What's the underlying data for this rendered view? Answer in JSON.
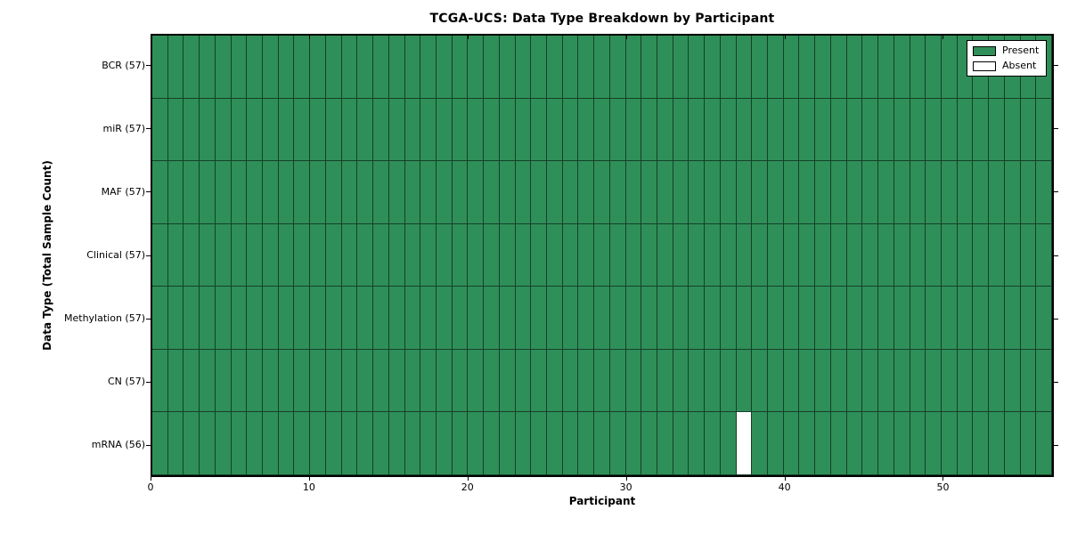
{
  "title": "TCGA-UCS: Data Type Breakdown by Participant",
  "colors": {
    "present": "#2f8f58",
    "absent": "#ffffff",
    "cell_edge": "#15402a",
    "spine": "#000000",
    "background": "#ffffff"
  },
  "chart_data": {
    "type": "heatmap",
    "title": "TCGA-UCS: Data Type Breakdown by Participant",
    "xlabel": "Participant",
    "ylabel": "Data Type (Total Sample Count)",
    "n_participants": 57,
    "x_range": [
      0,
      57
    ],
    "x_ticks": [
      0,
      10,
      20,
      30,
      40,
      50
    ],
    "rows": [
      {
        "label": "BCR (57)",
        "data_type": "BCR",
        "present_count": 57,
        "absent_participants": []
      },
      {
        "label": "miR (57)",
        "data_type": "miR",
        "present_count": 57,
        "absent_participants": []
      },
      {
        "label": "MAF (57)",
        "data_type": "MAF",
        "present_count": 57,
        "absent_participants": []
      },
      {
        "label": "Clinical (57)",
        "data_type": "Clinical",
        "present_count": 57,
        "absent_participants": []
      },
      {
        "label": "Methylation (57)",
        "data_type": "Methylation",
        "present_count": 57,
        "absent_participants": []
      },
      {
        "label": "CN (57)",
        "data_type": "CN",
        "present_count": 57,
        "absent_participants": []
      },
      {
        "label": "mRNA (56)",
        "data_type": "mRNA",
        "present_count": 56,
        "absent_participants": [
          37
        ]
      }
    ],
    "legend": [
      {
        "label": "Present",
        "color": "#2f8f58"
      },
      {
        "label": "Absent",
        "color": "#ffffff"
      }
    ],
    "legend_position": "upper right",
    "grid": "cell-borders"
  }
}
